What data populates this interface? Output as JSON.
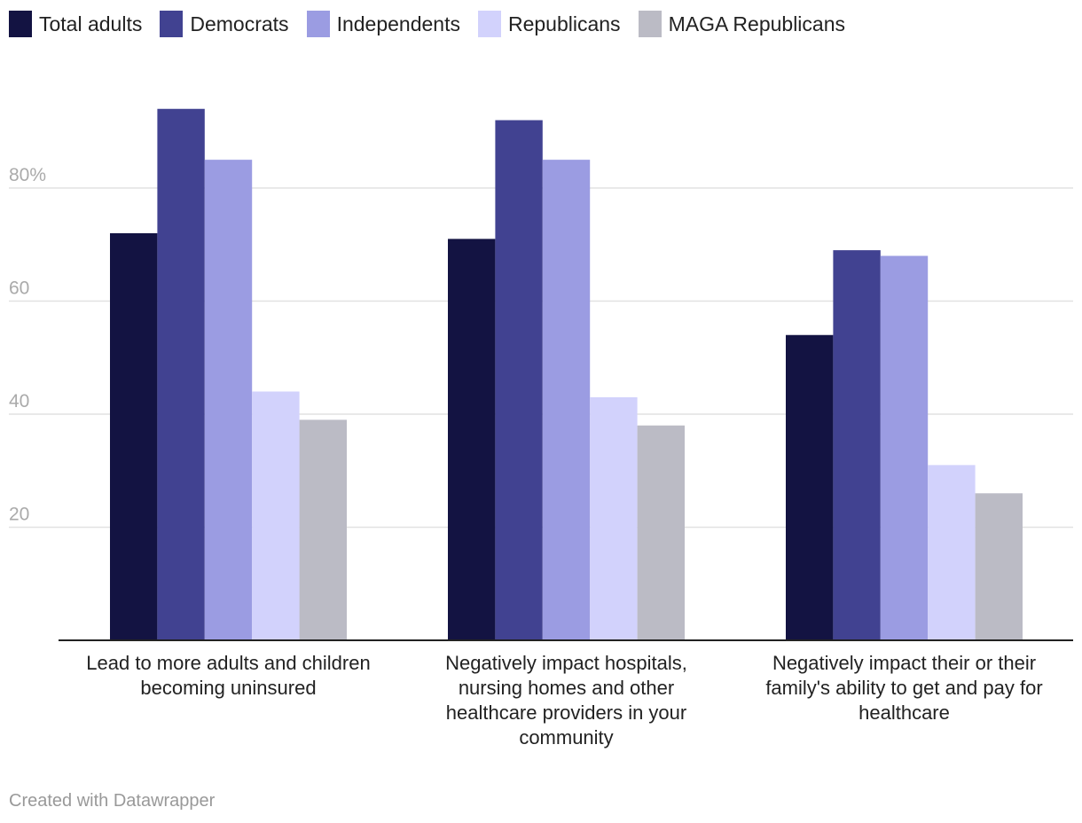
{
  "chart_data": {
    "type": "bar",
    "categories": [
      "Lead to more adults and children becoming uninsured",
      "Negatively impact hospitals, nursing homes and other healthcare providers in your community",
      "Negatively impact their or their family's ability to get and pay for healthcare"
    ],
    "series": [
      {
        "name": "Total adults",
        "color": "#131342",
        "values": [
          72,
          71,
          54
        ]
      },
      {
        "name": "Democrats",
        "color": "#414291",
        "values": [
          94,
          92,
          69
        ]
      },
      {
        "name": "Independents",
        "color": "#9b9ce2",
        "values": [
          85,
          85,
          68
        ]
      },
      {
        "name": "Republicans",
        "color": "#d2d2fc",
        "values": [
          44,
          43,
          31
        ]
      },
      {
        "name": "MAGA Republicans",
        "color": "#bbbbc5",
        "values": [
          39,
          38,
          26
        ]
      }
    ],
    "y_ticks": [
      {
        "value": 20,
        "label": "20"
      },
      {
        "value": 40,
        "label": "40"
      },
      {
        "value": 60,
        "label": "60"
      },
      {
        "value": 80,
        "label": "80%"
      }
    ],
    "ylim": [
      0,
      100
    ],
    "legend_position": "top-left",
    "grid": true
  },
  "footer": {
    "credit": "Created with Datawrapper"
  }
}
